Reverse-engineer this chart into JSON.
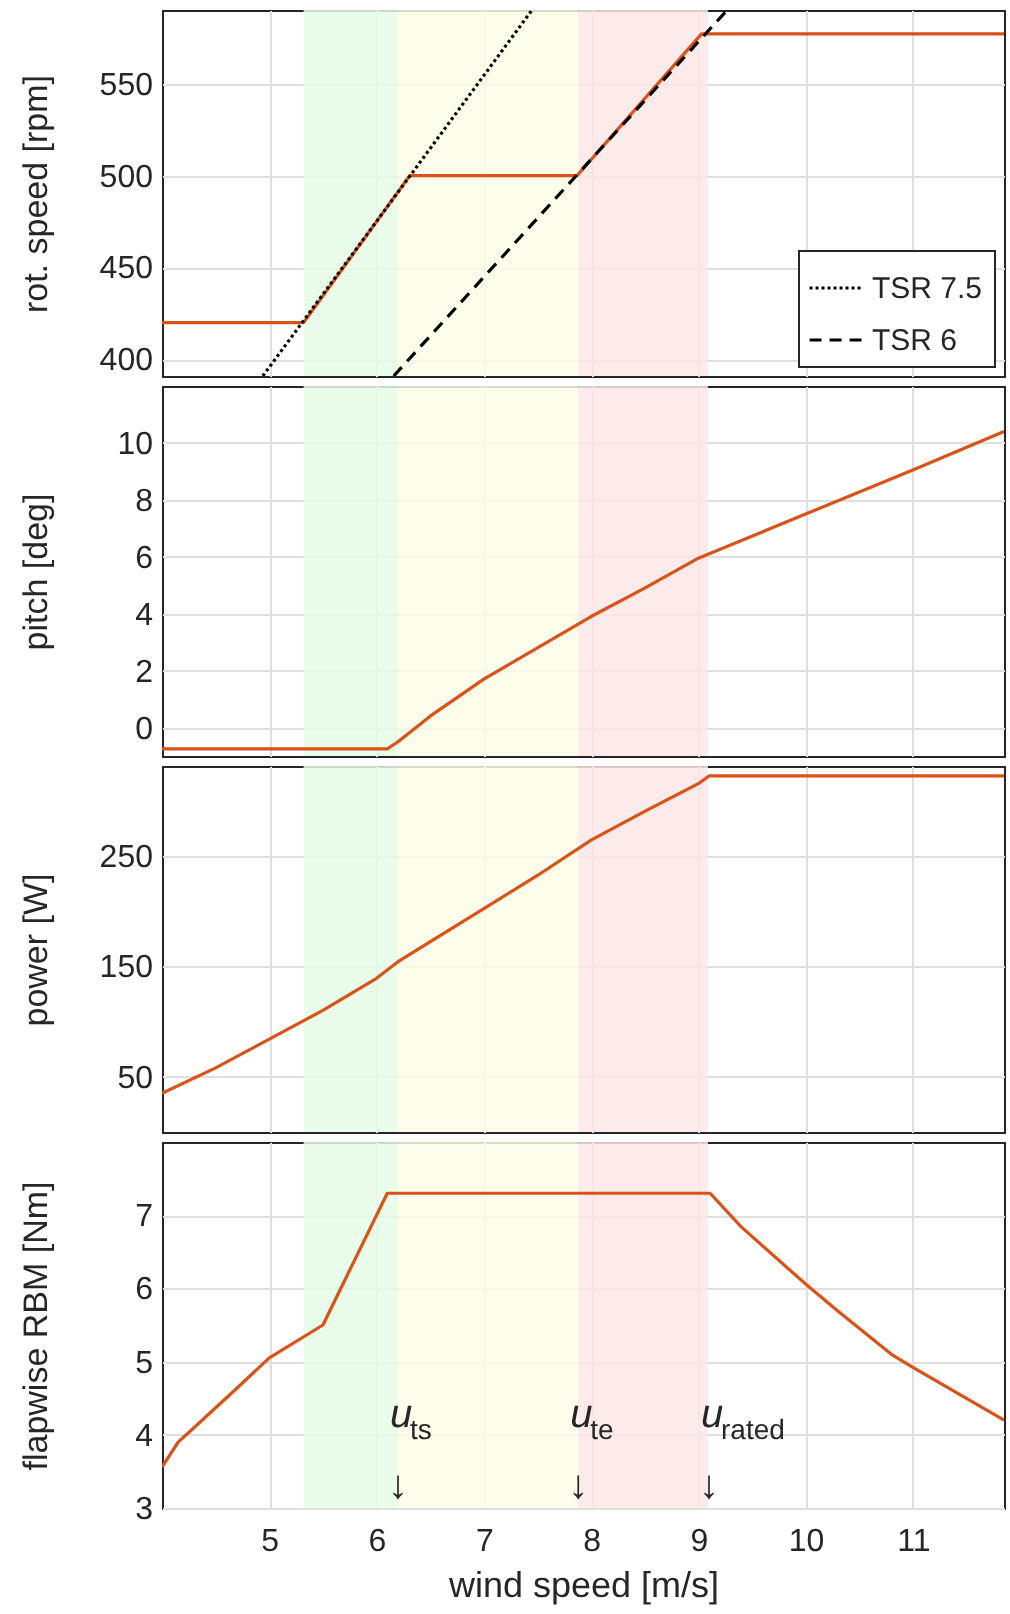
{
  "chart_data": [
    {
      "type": "line",
      "ylabel": "rot. speed [rpm]",
      "xlim": [
        4,
        11.85
      ],
      "xticks": [
        5,
        6,
        7,
        8,
        9,
        10,
        11
      ],
      "ylim": [
        391,
        590
      ],
      "yticks": [
        400,
        450,
        500,
        550
      ],
      "grid": true,
      "tick_labels": "y",
      "legend": "bottom right",
      "bands": [
        {
          "axis": "x",
          "from": 5.32,
          "to": 6.2,
          "color": "#e6fbe6"
        },
        {
          "axis": "x",
          "from": 6.2,
          "to": 7.88,
          "color": "#fdfde8"
        },
        {
          "axis": "x",
          "from": 7.88,
          "to": 9.09,
          "color": "#fde7e7"
        }
      ],
      "series": [
        {
          "color": "#d95319",
          "line_style": "solid",
          "x": [
            4,
            5.32,
            6.31,
            7.87,
            9.03,
            11.85
          ],
          "values": [
            420,
            420,
            500,
            500,
            577,
            577
          ]
        },
        {
          "name": "TSR 7.5",
          "color": "#000000",
          "line_style": "dotted",
          "x": [
            4.94,
            7.45
          ],
          "values": [
            391,
            590
          ]
        },
        {
          "name": "TSR 6",
          "color": "#000000",
          "line_style": "dashed",
          "x": [
            6.16,
            9.27
          ],
          "values": [
            391,
            590
          ]
        }
      ]
    },
    {
      "type": "line",
      "ylabel": "pitch [deg]",
      "xlim": [
        4,
        11.85
      ],
      "xticks": [
        5,
        6,
        7,
        8,
        9,
        10,
        11
      ],
      "ylim": [
        -1,
        12
      ],
      "yticks": [
        0,
        2,
        4,
        6,
        8,
        10
      ],
      "grid": true,
      "tick_labels": "y",
      "bands": [
        {
          "axis": "x",
          "from": 5.32,
          "to": 6.2,
          "color": "#e6fbe6"
        },
        {
          "axis": "x",
          "from": 6.2,
          "to": 7.88,
          "color": "#fdfde8"
        },
        {
          "axis": "x",
          "from": 7.88,
          "to": 9.09,
          "color": "#fde7e7"
        }
      ],
      "series": [
        {
          "color": "#d95319",
          "line_style": "solid",
          "x": [
            4,
            6.1,
            6.2,
            6.5,
            7,
            7.5,
            8,
            8.5,
            9,
            10,
            11,
            11.85
          ],
          "values": [
            -0.75,
            -0.75,
            -0.5,
            0.4,
            1.7,
            2.8,
            3.9,
            4.9,
            5.95,
            7.5,
            9.05,
            10.4
          ]
        }
      ]
    },
    {
      "type": "line",
      "ylabel": "power [W]",
      "xlim": [
        4,
        11.85
      ],
      "xticks": [
        5,
        6,
        7,
        8,
        9,
        10,
        11
      ],
      "ylim": [
        0,
        331
      ],
      "yticks": [
        50,
        150,
        250
      ],
      "grid": true,
      "tick_labels": "y",
      "bands": [
        {
          "axis": "x",
          "from": 5.32,
          "to": 6.2,
          "color": "#e6fbe6"
        },
        {
          "axis": "x",
          "from": 6.2,
          "to": 7.88,
          "color": "#fdfde8"
        },
        {
          "axis": "x",
          "from": 7.88,
          "to": 9.09,
          "color": "#fde7e7"
        }
      ],
      "series": [
        {
          "color": "#d95319",
          "line_style": "solid",
          "x": [
            4,
            4.5,
            5,
            5.5,
            6,
            6.2,
            6.6,
            7,
            7.5,
            8,
            8.5,
            9,
            9.1,
            11.85
          ],
          "values": [
            35,
            58,
            84,
            110,
            139,
            154,
            178,
            202,
            232,
            264,
            290,
            315,
            322,
            322
          ]
        }
      ]
    },
    {
      "type": "line",
      "ylabel": "flapwise RBM [Nm]",
      "xlabel": "wind speed [m/s]",
      "xlim": [
        4,
        11.85
      ],
      "xticks": [
        5,
        6,
        7,
        8,
        9,
        10,
        11
      ],
      "ylim": [
        3,
        8
      ],
      "yticks": [
        3,
        4,
        5,
        6,
        7
      ],
      "grid": true,
      "bands": [
        {
          "axis": "x",
          "from": 5.32,
          "to": 6.2,
          "color": "#e6fbe6"
        },
        {
          "axis": "x",
          "from": 6.2,
          "to": 7.88,
          "color": "#fdfde8"
        },
        {
          "axis": "x",
          "from": 7.88,
          "to": 9.09,
          "color": "#fde7e7"
        }
      ],
      "annotations": [
        {
          "text": "u$_{ts}$",
          "x": 6.2,
          "y": 4.1
        },
        {
          "text": "u$_{te}$",
          "x": 7.88,
          "y": 4.1
        },
        {
          "text": "u$_{rated}$",
          "x": 9.1,
          "y": 4.1
        },
        {
          "text": "↓",
          "x": 6.2,
          "y": 3.3
        },
        {
          "text": "↓",
          "x": 7.88,
          "y": 3.3
        },
        {
          "text": "↓",
          "x": 9.1,
          "y": 3.3
        }
      ],
      "series": [
        {
          "color": "#d95319",
          "line_style": "solid",
          "x": [
            4,
            4.15,
            4.3,
            4.7,
            5,
            5.5,
            5.8,
            6.1,
            9.11,
            9.4,
            10,
            10.3,
            10.8,
            11,
            11.85
          ],
          "values": [
            3.56,
            3.9,
            4.1,
            4.64,
            5.05,
            5.5,
            6.4,
            7.3,
            7.3,
            6.84,
            6.06,
            5.69,
            5.1,
            4.92,
            4.2
          ]
        }
      ]
    }
  ]
}
